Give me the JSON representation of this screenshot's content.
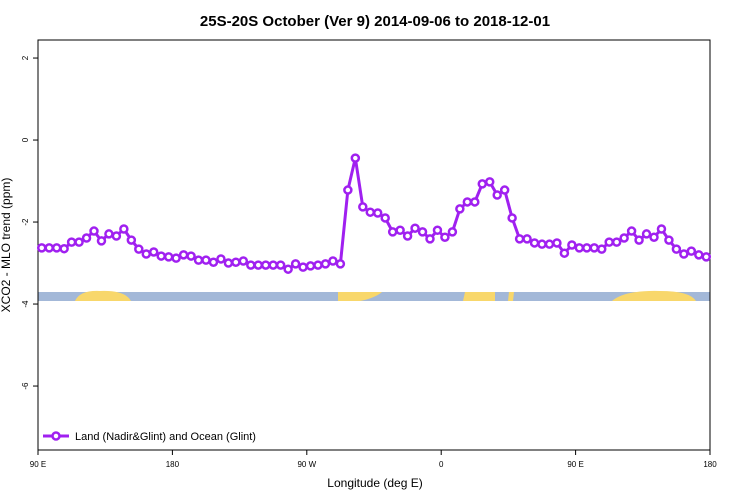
{
  "chart_data": {
    "type": "line",
    "title": "25S-20S October (Ver 9)   2014-09-06 to 2018-12-01",
    "x_label": "Longitude (deg E)",
    "y_label": "XCO2 - MLO trend (ppm)",
    "x": [
      92.5,
      97.5,
      102.5,
      107.5,
      112.5,
      117.5,
      122.5,
      127.5,
      132.5,
      137.5,
      142.5,
      147.5,
      152.5,
      157.5,
      162.5,
      167.5,
      172.5,
      177.5,
      182.5,
      187.5,
      192.5,
      197.5,
      202.5,
      207.5,
      212.5,
      217.5,
      222.5,
      227.5,
      232.5,
      237.5,
      242.5,
      247.5,
      252.5,
      257.5,
      262.5,
      267.5,
      272.5,
      277.5,
      282.5,
      287.5,
      292.5,
      297.5,
      302.5,
      307.5,
      312.5,
      317.5,
      322.5,
      327.5,
      332.5,
      337.5,
      342.5,
      347.5,
      352.5,
      357.5,
      362.5,
      367.5,
      372.5,
      377.5,
      382.5,
      387.5,
      392.5,
      397.5,
      402.5,
      407.5,
      412.5,
      417.5,
      422.5,
      427.5,
      432.5,
      437.5,
      442.5,
      447.5,
      452.5,
      457.5,
      462.5,
      467.5,
      472.5,
      477.5,
      482.5,
      487.5,
      492.5,
      497.5,
      502.5,
      507.5,
      512.5,
      517.5,
      522.5,
      527.5,
      532.5,
      537.5
    ],
    "series": [
      {
        "name": "Land (Nadir&Glint) and Ocean (Glint)",
        "color": "#a020f0",
        "values": [
          -2.63,
          -2.63,
          -2.63,
          -2.65,
          -2.49,
          -2.49,
          -2.39,
          -2.22,
          -2.46,
          -2.29,
          -2.34,
          -2.17,
          -2.44,
          -2.66,
          -2.78,
          -2.73,
          -2.83,
          -2.85,
          -2.88,
          -2.8,
          -2.83,
          -2.93,
          -2.93,
          -2.98,
          -2.9,
          -3.0,
          -2.98,
          -2.95,
          -3.05,
          -3.05,
          -3.05,
          -3.05,
          -3.05,
          -3.15,
          -3.02,
          -3.1,
          -3.07,
          -3.05,
          -3.02,
          -2.95,
          -3.02,
          -1.22,
          -0.44,
          -1.63,
          -1.76,
          -1.78,
          -1.9,
          -2.24,
          -2.2,
          -2.34,
          -2.15,
          -2.24,
          -2.41,
          -2.2,
          -2.37,
          -2.24,
          -1.68,
          -1.51,
          -1.51,
          -1.07,
          -1.02,
          -1.34,
          -1.22,
          -1.9,
          -2.41,
          -2.41,
          -2.51,
          -2.54,
          -2.54,
          -2.51,
          -2.76,
          -2.56,
          -2.63,
          -2.63,
          -2.63,
          -2.66,
          -2.49,
          -2.49,
          -2.39,
          -2.22,
          -2.44,
          -2.29,
          -2.37,
          -2.17,
          -2.44,
          -2.66,
          -2.78,
          -2.71,
          -2.8,
          -2.85
        ]
      }
    ],
    "xlim": [
      90,
      540
    ],
    "xticks": [
      {
        "value": 90,
        "label": "90 E"
      },
      180,
      {
        "value": 270,
        "label": "90 W"
      },
      {
        "value": 360,
        "label": "0"
      },
      {
        "value": 450,
        "label": "90 E"
      },
      {
        "value": 540,
        "label": "180"
      }
    ],
    "ylim": [
      -7.56,
      2.44
    ],
    "yticks": [
      2,
      0,
      -2,
      -4,
      -6
    ],
    "legend": "bottom-left"
  }
}
